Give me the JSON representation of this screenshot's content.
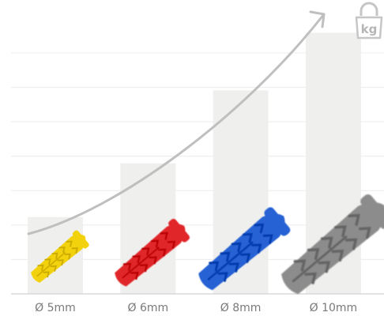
{
  "chart_data": {
    "type": "bar",
    "categories": [
      "Ø 5mm",
      "Ø 6mm",
      "Ø 8mm",
      "Ø 10mm"
    ],
    "values": [
      1.0,
      1.7,
      2.65,
      3.4
    ],
    "ylim": [
      0,
      3.6
    ],
    "grid": true,
    "legend": "none",
    "trend_arrow": true,
    "colors": {
      "bar": "#efefed",
      "grid": "#ececec",
      "axis": "#d9d9d9",
      "arrow": "#bfbfbf",
      "tick_text": "#7a7a7a",
      "plugs": [
        "#f2d20a",
        "#e1272a",
        "#2862d4",
        "#8c8c8c"
      ]
    },
    "icon": "weight-kg-icon"
  },
  "weight_badge": {
    "unit": "kg"
  }
}
